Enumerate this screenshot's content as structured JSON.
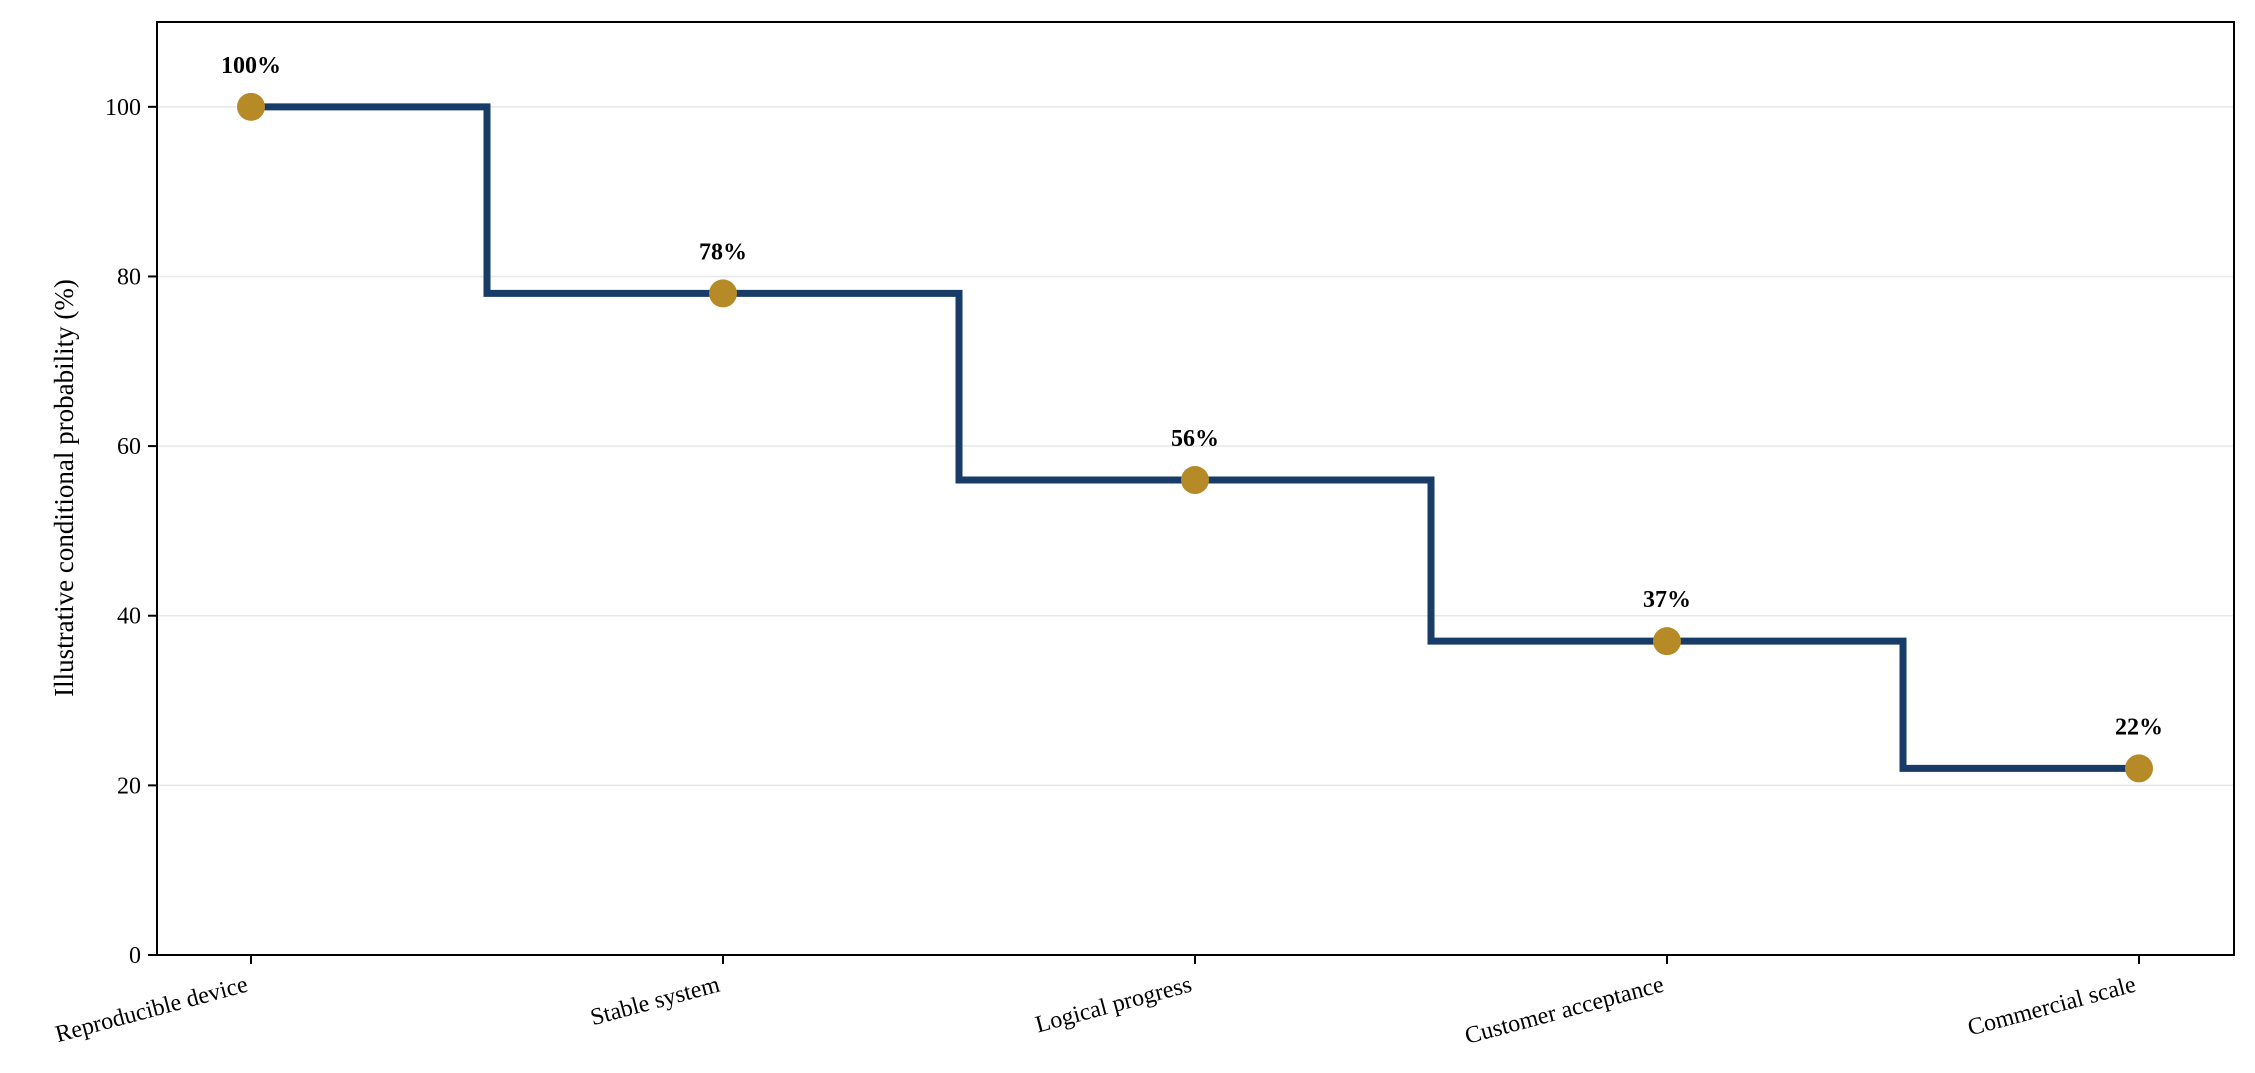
{
  "chart_data": {
    "type": "line",
    "step": "mid",
    "categories": [
      "Reproducible device",
      "Stable system",
      "Logical progress",
      "Customer acceptance",
      "Commercial scale"
    ],
    "values": [
      100,
      78,
      56,
      37,
      22
    ],
    "data_labels": [
      "100%",
      "78%",
      "56%",
      "37%",
      "22%"
    ],
    "ylabel": "Illustrative conditional probability (%)",
    "xlabel": "",
    "ylim": [
      0,
      110
    ],
    "yticks": [
      0,
      20,
      40,
      60,
      80,
      100
    ],
    "grid": "horizontal",
    "x_tick_rotation": 15,
    "colors": {
      "line": "#173c68",
      "marker": "#b68a26",
      "grid": "#e8e8e8",
      "axis": "#000000"
    }
  }
}
